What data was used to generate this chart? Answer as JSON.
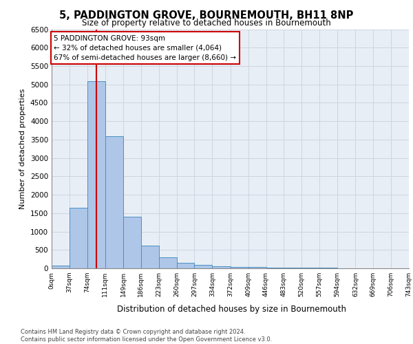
{
  "title": "5, PADDINGTON GROVE, BOURNEMOUTH, BH11 8NP",
  "subtitle": "Size of property relative to detached houses in Bournemouth",
  "xlabel": "Distribution of detached houses by size in Bournemouth",
  "ylabel": "Number of detached properties",
  "bin_edges": [
    0,
    37,
    74,
    111,
    149,
    186,
    223,
    260,
    297,
    334,
    372,
    409,
    446,
    483,
    520,
    557,
    594,
    632,
    669,
    706,
    743
  ],
  "bin_counts": [
    75,
    1640,
    5080,
    3600,
    1410,
    620,
    305,
    150,
    95,
    55,
    45,
    35,
    25,
    15,
    10,
    10,
    8,
    5,
    5,
    5
  ],
  "bar_color": "#aec6e8",
  "bar_edge_color": "#4a90c4",
  "property_sqm": 93,
  "vline_color": "#cc0000",
  "annotation_text": "5 PADDINGTON GROVE: 93sqm\n← 32% of detached houses are smaller (4,064)\n67% of semi-detached houses are larger (8,660) →",
  "annotation_box_color": "white",
  "annotation_box_edge_color": "#cc0000",
  "grid_color": "#cdd5e0",
  "background_color": "#e8eef5",
  "tick_labels": [
    "0sqm",
    "37sqm",
    "74sqm",
    "111sqm",
    "149sqm",
    "186sqm",
    "223sqm",
    "260sqm",
    "297sqm",
    "334sqm",
    "372sqm",
    "409sqm",
    "446sqm",
    "483sqm",
    "520sqm",
    "557sqm",
    "594sqm",
    "632sqm",
    "669sqm",
    "706sqm",
    "743sqm"
  ],
  "ylim": [
    0,
    6500
  ],
  "yticks": [
    0,
    500,
    1000,
    1500,
    2000,
    2500,
    3000,
    3500,
    4000,
    4500,
    5000,
    5500,
    6000,
    6500
  ],
  "footer_line1": "Contains HM Land Registry data © Crown copyright and database right 2024.",
  "footer_line2": "Contains public sector information licensed under the Open Government Licence v3.0."
}
